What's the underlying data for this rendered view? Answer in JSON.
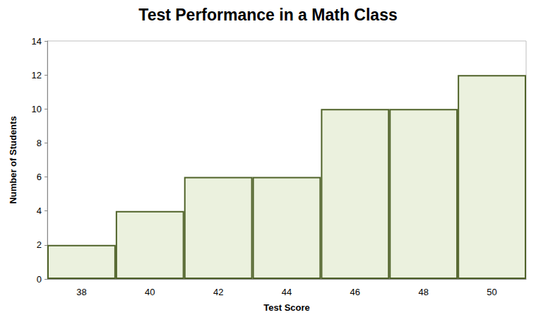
{
  "chart_data": {
    "type": "bar",
    "title": "Test Performance in a Math Class",
    "x_label": "Test Score",
    "y_label": "Number of Students",
    "categories": [
      "38",
      "40",
      "42",
      "44",
      "46",
      "48",
      "50"
    ],
    "values": [
      2,
      4,
      6,
      6,
      10,
      10,
      12
    ],
    "color": "#ebf1de",
    "ylim": [
      0,
      14
    ],
    "yticks": [
      0,
      2,
      4,
      6,
      8,
      10,
      12,
      14
    ],
    "grid": false
  }
}
